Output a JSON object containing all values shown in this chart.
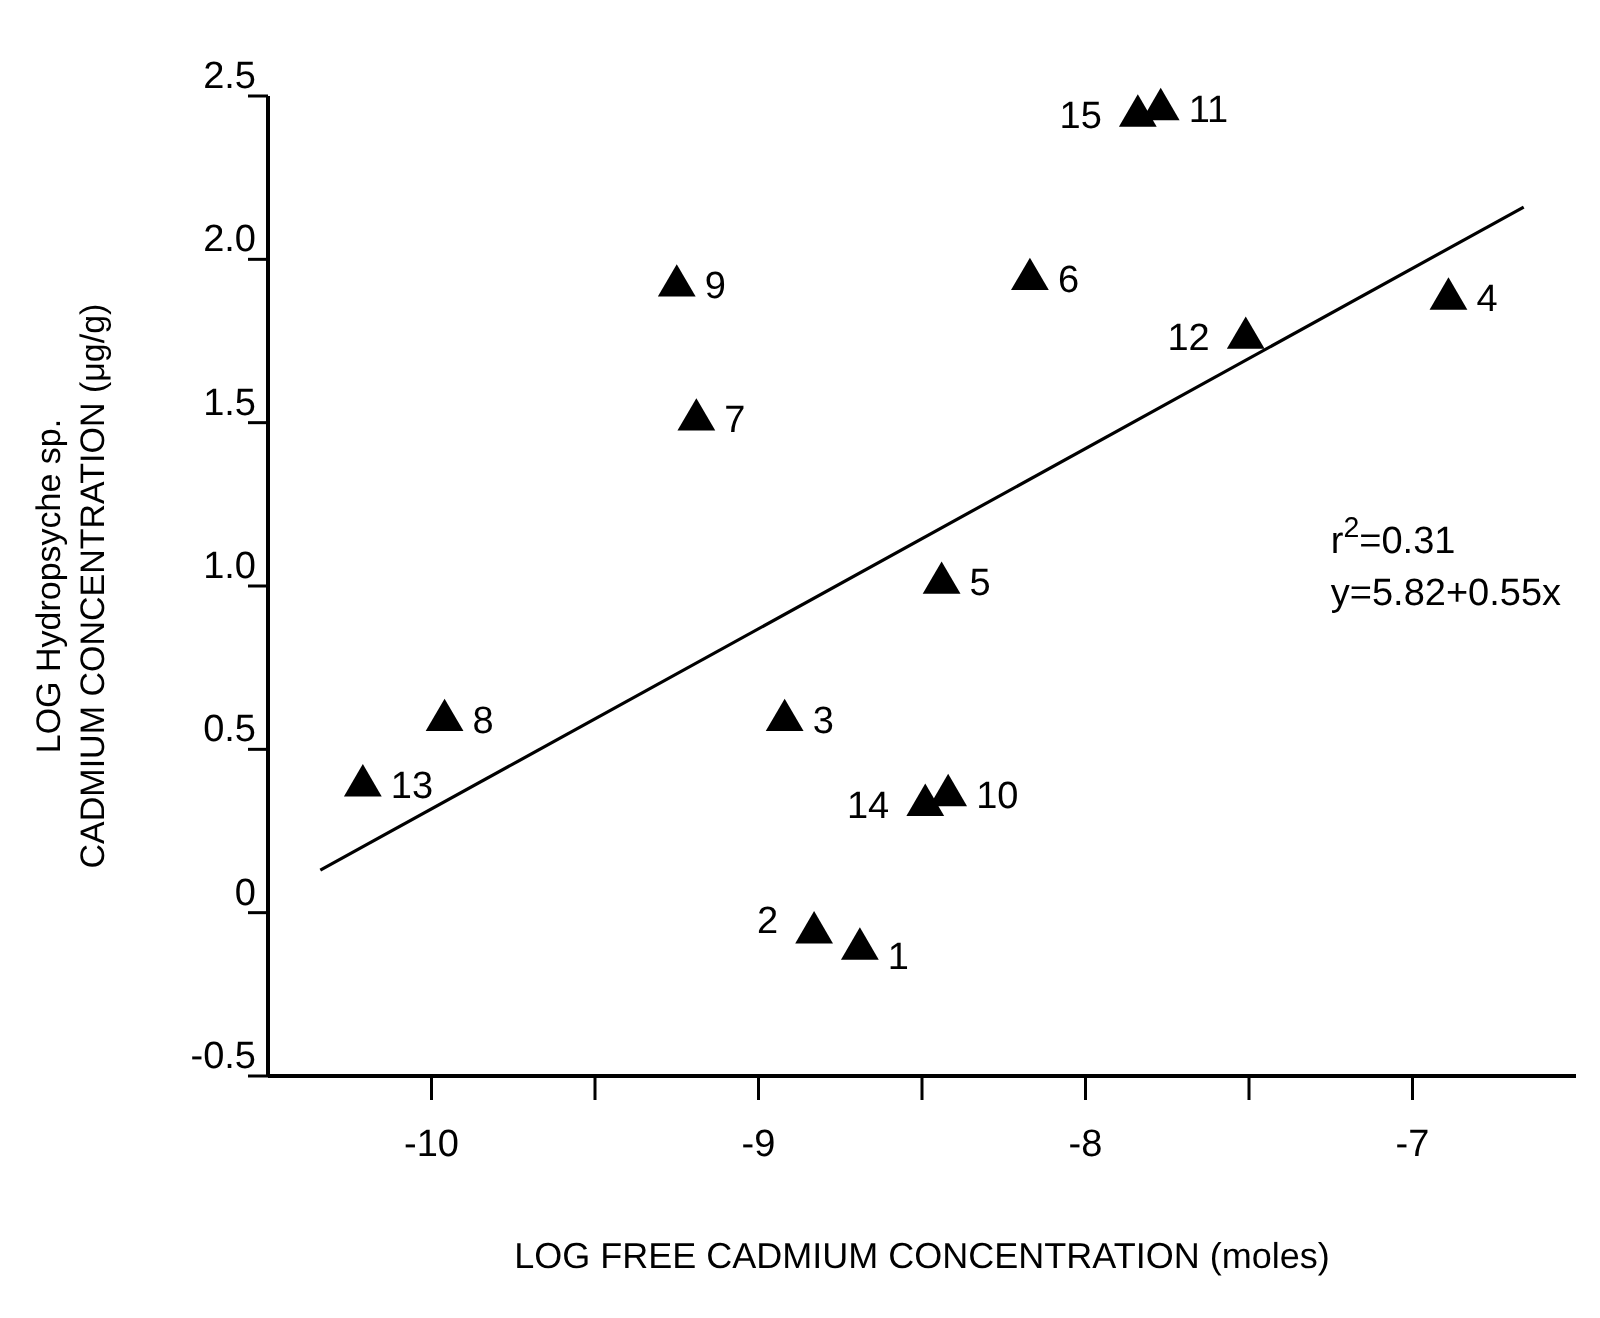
{
  "chart_data": {
    "type": "scatter",
    "xlabel": "LOG FREE CADMIUM CONCENTRATION (moles)",
    "ylabel": "LOG Hydropsyche sp.\nCADMIUM CONCENTRATION (μg/g)",
    "xlim": [
      -10.5,
      -6.5
    ],
    "ylim": [
      -0.5,
      2.5
    ],
    "xticks": [
      -10,
      {
        "value": -9.5,
        "label": null
      },
      -9,
      {
        "value": -8.5,
        "label": null
      },
      -8,
      {
        "value": -7.5,
        "label": null
      },
      -7
    ],
    "yticks": [
      "-0.5",
      0,
      0.5,
      {
        "value": 1,
        "label": "1.0"
      },
      1.5,
      {
        "value": 2,
        "label": "2.0"
      },
      2.5
    ],
    "grid": false,
    "series": [
      {
        "marker": "triangle",
        "color": "#000000",
        "x": [
          -8.69,
          -8.83,
          -8.92,
          -6.89,
          -8.44,
          -8.17,
          -9.19,
          -9.96,
          -9.25,
          -8.42,
          -7.77,
          -7.51,
          -10.21,
          -8.49,
          -7.84
        ],
        "values": [
          -0.1,
          -0.05,
          0.6,
          1.89,
          1.02,
          1.95,
          1.52,
          0.6,
          1.93,
          0.37,
          2.47,
          1.77,
          0.4,
          0.34,
          2.45
        ]
      },
      {
        "type": "line",
        "color": "#000000",
        "x": [
          -10.34,
          -6.66
        ],
        "values": [
          0.13,
          2.16
        ],
        "marker": "none",
        "line_style": "solid"
      }
    ],
    "annotations": [
      {
        "text": "1",
        "x": -8.69,
        "y": -0.1
      },
      {
        "text": "2",
        "x": -8.83,
        "y": -0.05
      },
      {
        "text": "3",
        "x": -8.92,
        "y": 0.6
      },
      {
        "text": "4",
        "x": -6.89,
        "y": 1.89
      },
      {
        "text": "5",
        "x": -8.44,
        "y": 1.02
      },
      {
        "text": "6",
        "x": -8.17,
        "y": 1.95
      },
      {
        "text": "7",
        "x": -9.19,
        "y": 1.52
      },
      {
        "text": "8",
        "x": -9.96,
        "y": 0.6
      },
      {
        "text": "9",
        "x": -9.25,
        "y": 1.93
      },
      {
        "text": "10",
        "x": -8.42,
        "y": 0.37
      },
      {
        "text": "11",
        "x": -7.77,
        "y": 2.47
      },
      {
        "text": "12",
        "x": -7.51,
        "y": 1.77
      },
      {
        "text": "13",
        "x": -10.21,
        "y": 0.4
      },
      {
        "text": "14",
        "x": -8.49,
        "y": 0.34
      },
      {
        "text": "15",
        "x": -7.84,
        "y": 2.45
      },
      "r$^{2}$=0.31",
      "y=5.82+0.55x"
    ]
  }
}
